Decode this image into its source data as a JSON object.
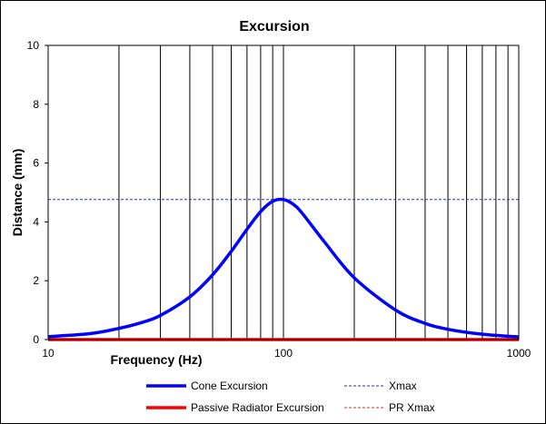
{
  "chart_data": {
    "type": "line",
    "title": "Excursion",
    "xlabel": "Frequency (Hz)",
    "ylabel": "Distance (mm)",
    "x_scale": "log",
    "xlim": [
      10,
      1000
    ],
    "ylim": [
      0,
      10
    ],
    "x_tick_labels": [
      "10",
      "100",
      "1000"
    ],
    "y_tick_labels": [
      "0",
      "2",
      "4",
      "6",
      "8",
      "10"
    ],
    "grid": true,
    "legend_position": "bottom",
    "series": [
      {
        "name": "Cone Excursion",
        "color": "#0000ff",
        "style": "solid",
        "x": [
          10,
          15,
          20,
          25,
          30,
          40,
          50,
          60,
          70,
          80,
          90,
          100,
          110,
          120,
          150,
          200,
          300,
          400,
          500,
          700,
          1000
        ],
        "y": [
          0.1,
          0.2,
          0.38,
          0.58,
          0.82,
          1.45,
          2.2,
          3.0,
          3.75,
          4.35,
          4.7,
          4.76,
          4.6,
          4.3,
          3.3,
          2.1,
          1.0,
          0.55,
          0.35,
          0.18,
          0.09
        ]
      },
      {
        "name": "Passive Radiator Excursion",
        "color": "#ff0000",
        "style": "solid",
        "x": [
          10,
          1000
        ],
        "y": [
          0,
          0
        ]
      },
      {
        "name": "Xmax",
        "color": "#2b2bbf",
        "style": "dashed",
        "x": [
          10,
          1000
        ],
        "y": [
          4.76,
          4.76
        ]
      },
      {
        "name": "PR Xmax",
        "color": "#cc3333",
        "style": "dashed",
        "x": [
          10,
          1000
        ],
        "y": [
          0,
          0
        ]
      }
    ]
  }
}
